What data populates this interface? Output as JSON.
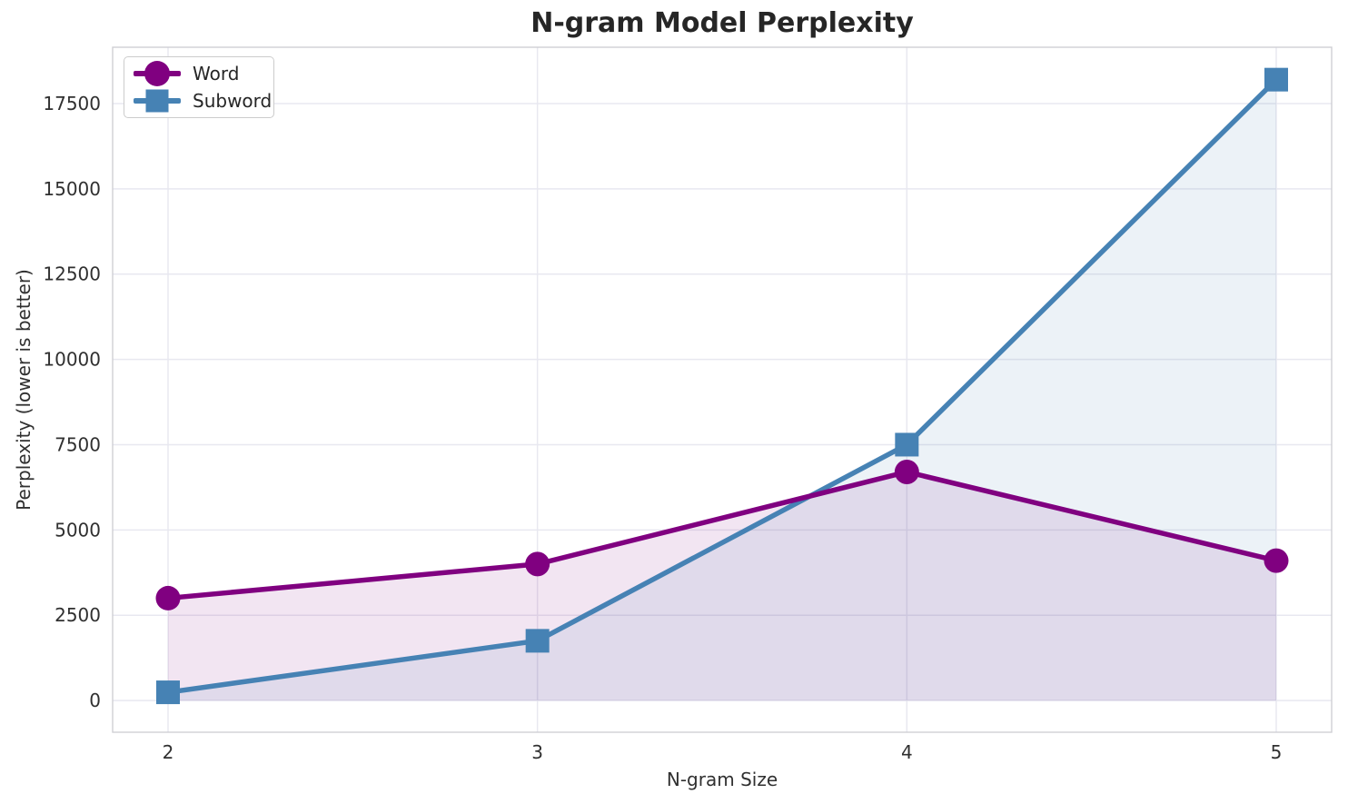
{
  "figure": {
    "title": "N-gram Model Perplexity"
  },
  "chart_data": {
    "type": "line",
    "title": "N-gram Model Perplexity",
    "xlabel": "N-gram Size",
    "ylabel": "Perplexity (lower is better)",
    "x": [
      2,
      3,
      4,
      5
    ],
    "series": [
      {
        "name": "Word",
        "color": "#800080",
        "marker": "circle",
        "values": [
          3000,
          4000,
          6700,
          4100
        ],
        "fill_to_zero": true,
        "fill_alpha": 0.1
      },
      {
        "name": "Subword",
        "color": "#4682B4",
        "marker": "square",
        "values": [
          240,
          1750,
          7500,
          18200
        ],
        "fill_to_zero": true,
        "fill_alpha": 0.1
      }
    ],
    "xticks": [
      2,
      3,
      4,
      5
    ],
    "yticks": [
      0,
      2500,
      5000,
      7500,
      10000,
      12500,
      15000,
      17500
    ],
    "xlim": [
      1.85,
      5.15
    ],
    "ylim": [
      -930,
      19150
    ],
    "grid": true,
    "legend": {
      "position": "upper left",
      "entries": [
        "Word",
        "Subword"
      ]
    },
    "style": {
      "background": "#ffffff",
      "grid_color": "#e8e8f0",
      "spine_color": "#cfcfd4",
      "title_color": "#262626",
      "tick_color": "#303030",
      "legend_border": "#cccccc",
      "line_width": 5.5,
      "marker_size": 27
    }
  }
}
